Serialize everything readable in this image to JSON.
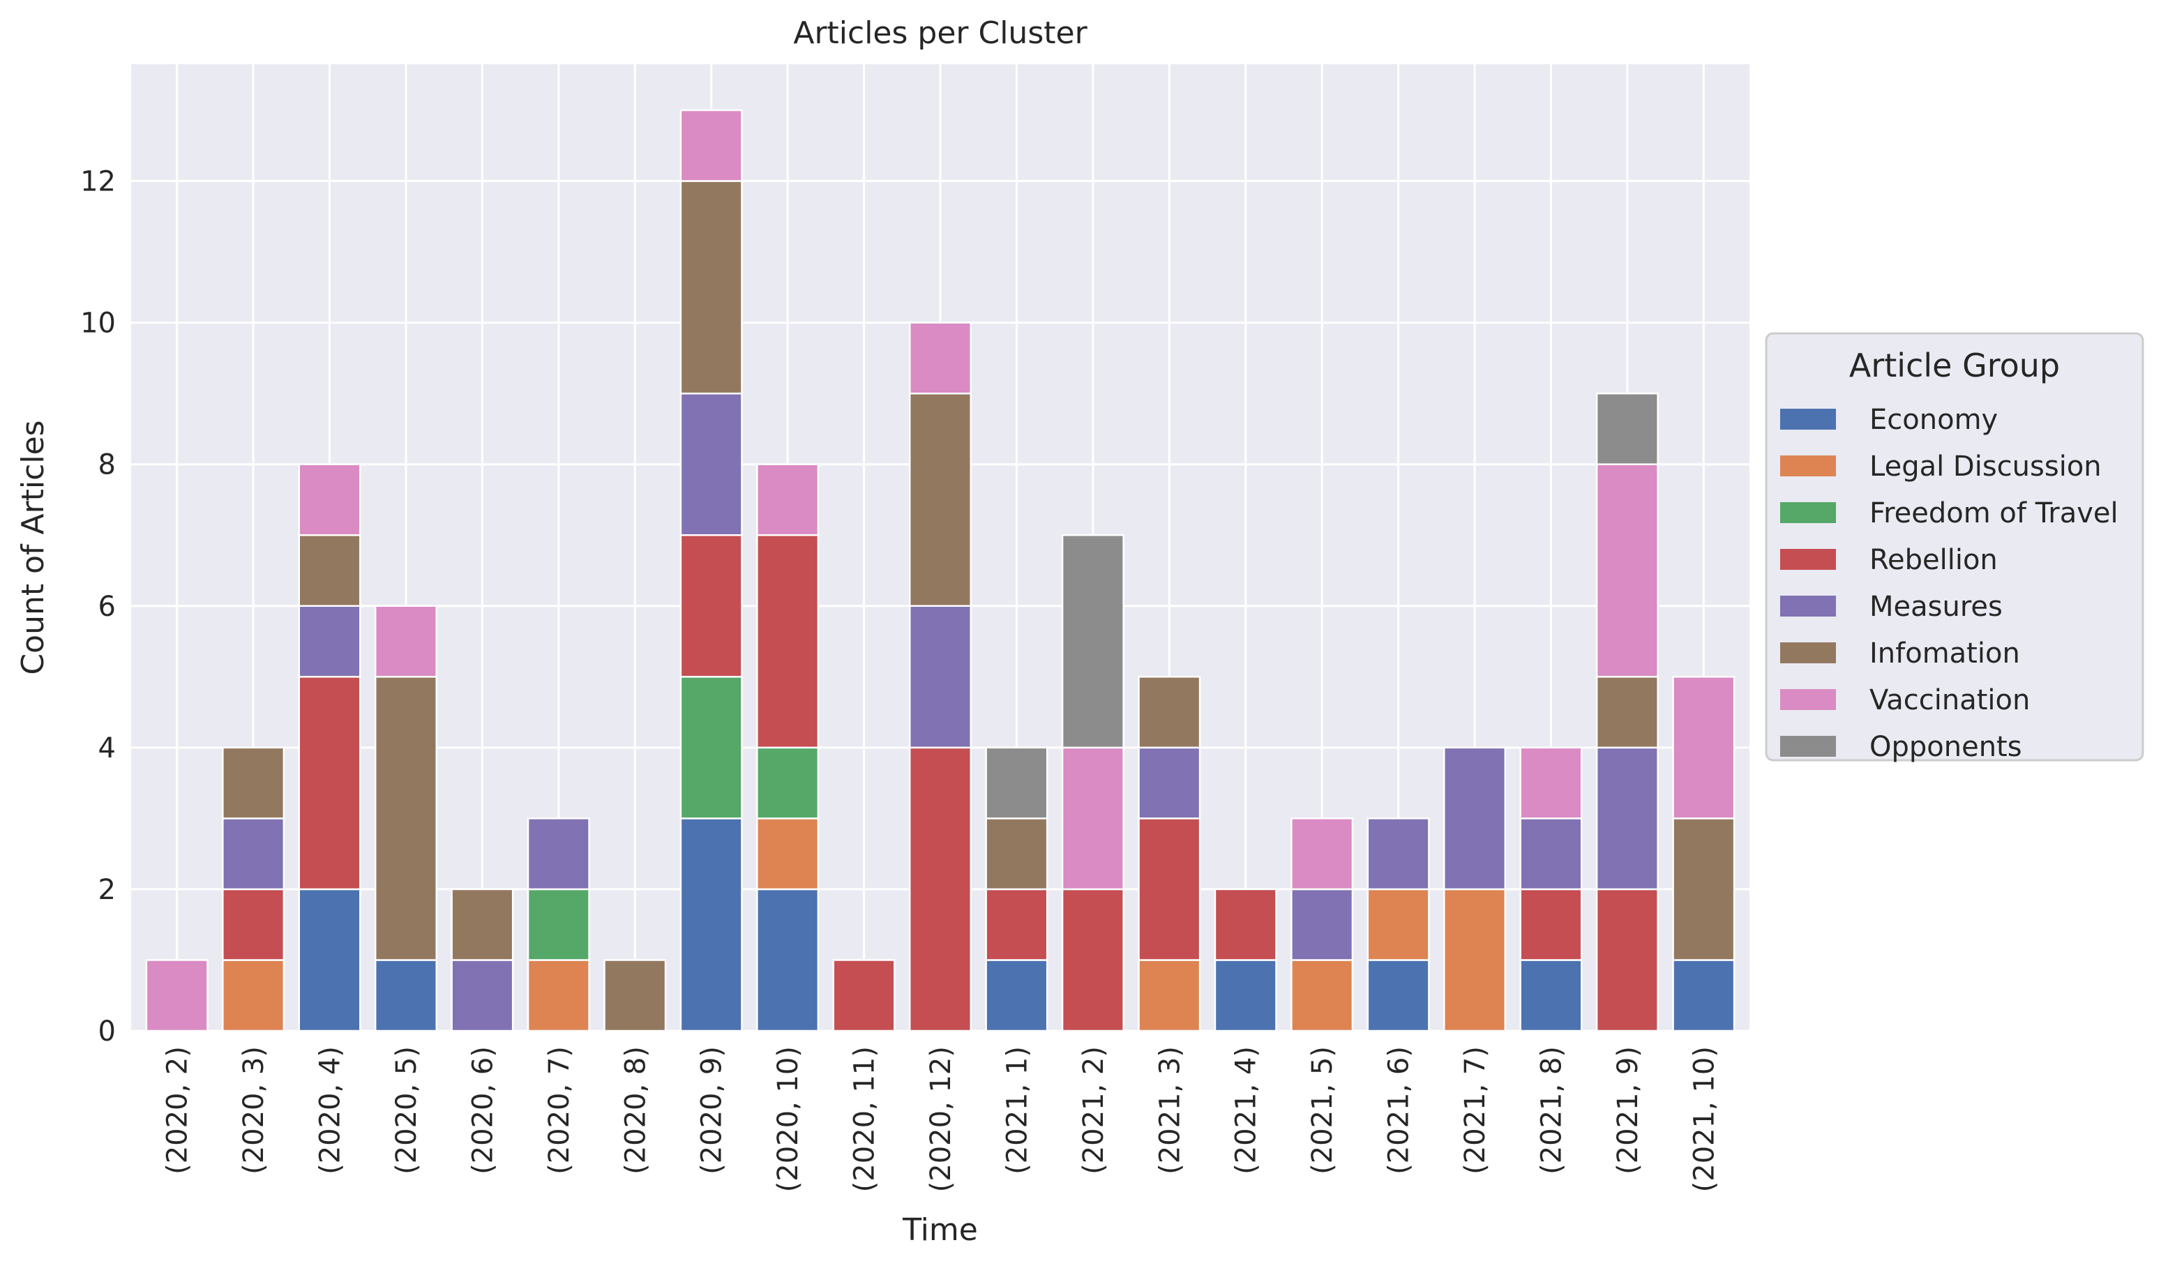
{
  "chart_data": {
    "type": "bar",
    "stacked": true,
    "title": "Articles per Cluster",
    "xlabel": "Time",
    "ylabel": "Count of Articles",
    "ylim": [
      0,
      13.65
    ],
    "yticks": [
      0,
      2,
      4,
      6,
      8,
      10,
      12
    ],
    "grid": true,
    "legend_title": "Article Group",
    "legend_position": "center-right outside",
    "categories": [
      "(2020, 2)",
      "(2020, 3)",
      "(2020, 4)",
      "(2020, 5)",
      "(2020, 6)",
      "(2020, 7)",
      "(2020, 8)",
      "(2020, 9)",
      "(2020, 10)",
      "(2020, 11)",
      "(2020, 12)",
      "(2021, 1)",
      "(2021, 2)",
      "(2021, 3)",
      "(2021, 4)",
      "(2021, 5)",
      "(2021, 6)",
      "(2021, 7)",
      "(2021, 8)",
      "(2021, 9)",
      "(2021, 10)"
    ],
    "series": [
      {
        "name": "Economy",
        "color": "#4c72b0",
        "values": [
          0,
          0,
          2,
          1,
          0,
          0,
          0,
          3,
          2,
          0,
          0,
          1,
          0,
          0,
          1,
          0,
          1,
          0,
          1,
          0,
          1
        ]
      },
      {
        "name": "Legal Discussion",
        "color": "#dd8452",
        "values": [
          0,
          1,
          0,
          0,
          0,
          1,
          0,
          0,
          1,
          0,
          0,
          0,
          0,
          1,
          0,
          1,
          1,
          2,
          0,
          0,
          0
        ]
      },
      {
        "name": "Freedom of Travel",
        "color": "#55a868",
        "values": [
          0,
          0,
          0,
          0,
          0,
          1,
          0,
          2,
          1,
          0,
          0,
          0,
          0,
          0,
          0,
          0,
          0,
          0,
          0,
          0,
          0
        ]
      },
      {
        "name": "Rebellion",
        "color": "#c44e52",
        "values": [
          0,
          1,
          3,
          0,
          0,
          0,
          0,
          2,
          3,
          1,
          4,
          1,
          2,
          2,
          1,
          0,
          0,
          0,
          1,
          2,
          0
        ]
      },
      {
        "name": "Measures",
        "color": "#8172b3",
        "values": [
          0,
          1,
          1,
          0,
          1,
          1,
          0,
          2,
          0,
          0,
          2,
          0,
          0,
          1,
          0,
          1,
          1,
          2,
          1,
          2,
          0
        ]
      },
      {
        "name": "Infomation",
        "color": "#937860",
        "values": [
          0,
          1,
          1,
          4,
          1,
          0,
          1,
          3,
          0,
          0,
          3,
          1,
          0,
          1,
          0,
          0,
          0,
          0,
          0,
          1,
          2
        ]
      },
      {
        "name": "Vaccination",
        "color": "#da8bc3",
        "values": [
          1,
          0,
          1,
          1,
          0,
          0,
          0,
          1,
          1,
          0,
          1,
          0,
          2,
          0,
          0,
          1,
          0,
          0,
          1,
          3,
          2
        ]
      },
      {
        "name": "Opponents",
        "color": "#8c8c8c",
        "values": [
          0,
          0,
          0,
          0,
          0,
          0,
          0,
          0,
          0,
          0,
          0,
          1,
          3,
          0,
          0,
          0,
          0,
          0,
          0,
          1,
          0
        ]
      }
    ]
  },
  "colors": {
    "plot_background": "#eaeaf2",
    "grid": "#ffffff",
    "text": "#262626"
  }
}
